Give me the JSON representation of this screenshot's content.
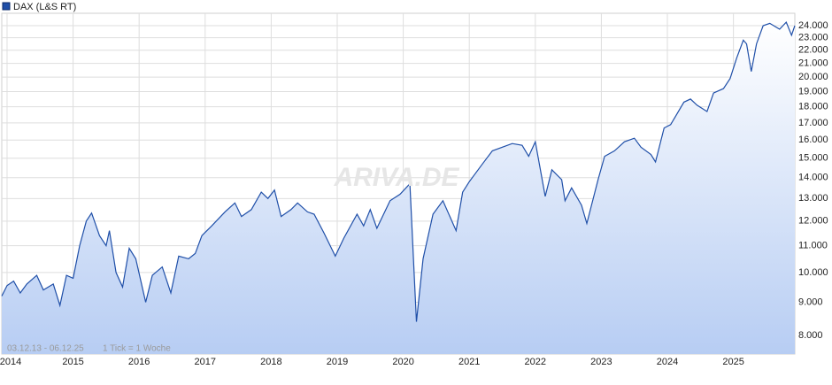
{
  "chart_data": {
    "type": "area",
    "title": null,
    "legend_position": "top-left",
    "annotations": [
      "03.12.13 - 06.12.25",
      "1 Tick = 1 Woche"
    ],
    "watermark": "ARIVA.DE",
    "x": [
      2013.92,
      2014.0,
      2014.1,
      2014.2,
      2014.3,
      2014.45,
      2014.55,
      2014.7,
      2014.8,
      2014.9,
      2015.0,
      2015.1,
      2015.2,
      2015.28,
      2015.4,
      2015.5,
      2015.55,
      2015.65,
      2015.75,
      2015.85,
      2015.95,
      2016.1,
      2016.2,
      2016.35,
      2016.48,
      2016.6,
      2016.75,
      2016.85,
      2016.95,
      2017.1,
      2017.3,
      2017.45,
      2017.55,
      2017.7,
      2017.85,
      2017.95,
      2018.05,
      2018.15,
      2018.3,
      2018.4,
      2018.55,
      2018.65,
      2018.8,
      2018.97,
      2019.1,
      2019.3,
      2019.4,
      2019.5,
      2019.6,
      2019.8,
      2019.95,
      2020.1,
      2020.2,
      2020.3,
      2020.45,
      2020.6,
      2020.8,
      2020.9,
      2021.0,
      2021.2,
      2021.35,
      2021.5,
      2021.65,
      2021.8,
      2021.9,
      2022.0,
      2022.15,
      2022.25,
      2022.4,
      2022.45,
      2022.55,
      2022.7,
      2022.78,
      2022.95,
      2023.05,
      2023.2,
      2023.35,
      2023.5,
      2023.6,
      2023.75,
      2023.82,
      2023.95,
      2024.05,
      2024.25,
      2024.35,
      2024.45,
      2024.6,
      2024.7,
      2024.85,
      2024.95,
      2025.05,
      2025.15,
      2025.2,
      2025.27,
      2025.35,
      2025.45,
      2025.55,
      2025.7,
      2025.8,
      2025.88,
      2025.93
    ],
    "series": [
      {
        "name": "DAX (L&S RT)",
        "color": "#1f4fa8",
        "values": [
          9200,
          9550,
          9700,
          9300,
          9600,
          9900,
          9400,
          9600,
          8900,
          9900,
          9800,
          11000,
          12000,
          12350,
          11400,
          11000,
          11600,
          10000,
          9500,
          10900,
          10500,
          9000,
          9900,
          10200,
          9300,
          10600,
          10500,
          10700,
          11400,
          11800,
          12400,
          12800,
          12200,
          12500,
          13300,
          13000,
          13400,
          12200,
          12500,
          12800,
          12400,
          12300,
          11500,
          10600,
          11300,
          12300,
          11800,
          12500,
          11700,
          12900,
          13200,
          13700,
          8400,
          10500,
          12300,
          12900,
          11600,
          13300,
          13800,
          14700,
          15400,
          15600,
          15800,
          15700,
          15100,
          15900,
          13100,
          14400,
          13900,
          12900,
          13500,
          12700,
          11900,
          13900,
          15100,
          15400,
          15900,
          16100,
          15600,
          15200,
          14800,
          16700,
          16900,
          18300,
          18500,
          18100,
          17700,
          18900,
          19200,
          19900,
          21400,
          22800,
          22500,
          20400,
          22500,
          24000,
          24200,
          23700,
          24300,
          23200,
          24000
        ]
      }
    ],
    "xlim": [
      2013.92,
      2025.93
    ],
    "xticks": [
      2014,
      2015,
      2016,
      2017,
      2018,
      2019,
      2020,
      2021,
      2022,
      2023,
      2024,
      2025
    ],
    "ylim": [
      7490,
      25080
    ],
    "log_scale": true,
    "grid": true,
    "yticks": [
      {
        "value": 8000,
        "label": "8.000"
      },
      {
        "value": 9000,
        "label": "9.000"
      },
      {
        "value": 10000,
        "label": "10.000"
      },
      {
        "value": 11000,
        "label": "11.000"
      },
      {
        "value": 12000,
        "label": "12.000"
      },
      {
        "value": 13000,
        "label": "13.000"
      },
      {
        "value": 14000,
        "label": "14.000"
      },
      {
        "value": 15000,
        "label": "15.000"
      },
      {
        "value": 16000,
        "label": "16.000"
      },
      {
        "value": 17000,
        "label": "17.000"
      },
      {
        "value": 18000,
        "label": "18.000"
      },
      {
        "value": 19000,
        "label": "19.000"
      },
      {
        "value": 20000,
        "label": "20.000"
      },
      {
        "value": 21000,
        "label": "21.000"
      },
      {
        "value": 22000,
        "label": "22.000"
      },
      {
        "value": 23000,
        "label": "23.000"
      },
      {
        "value": 24000,
        "label": "24.000"
      }
    ]
  }
}
